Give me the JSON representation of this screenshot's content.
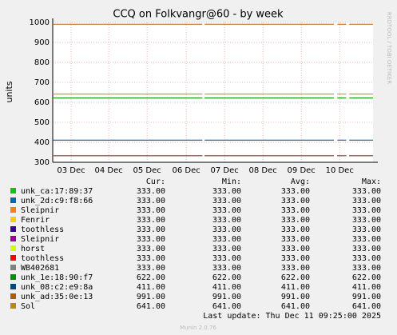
{
  "chart_data": {
    "type": "line",
    "title": "CCQ on Folkvangr@60 - by week",
    "y_label": "units",
    "side_label": "RRDTOOL / TOBI OETIKER",
    "last_update": "Last update: Thu Dec 11 09:25:00 2025",
    "footer": "Munin 2.0.76",
    "legend_headers": [
      "Cur:",
      "Min:",
      "Avg:",
      "Max:"
    ],
    "grid": true,
    "xlim": [
      0,
      8.35
    ],
    "xticks": [
      {
        "value": 0.48,
        "label": "03 Dec"
      },
      {
        "value": 1.46,
        "label": "04 Dec"
      },
      {
        "value": 2.46,
        "label": "05 Dec"
      },
      {
        "value": 3.48,
        "label": "06 Dec"
      },
      {
        "value": 4.48,
        "label": "07 Dec"
      },
      {
        "value": 5.48,
        "label": "08 Dec"
      },
      {
        "value": 6.48,
        "label": "09 Dec"
      },
      {
        "value": 7.48,
        "label": "10 Dec"
      }
    ],
    "ylim": [
      300,
      1000
    ],
    "yticks": [
      300,
      400,
      500,
      600,
      700,
      800,
      900,
      1000
    ],
    "x": [
      0,
      3.9,
      3.93,
      3.96,
      7.33,
      7.37,
      7.42,
      7.65,
      7.69,
      7.73,
      8.35
    ],
    "series": [
      {
        "name": "unk_ca:17:89:37",
        "color": "#00cc00",
        "values": [
          333,
          333,
          null,
          333,
          333,
          null,
          333,
          333,
          null,
          333,
          333
        ],
        "cur": "333.00",
        "min": "333.00",
        "avg": "333.00",
        "max": "333.00"
      },
      {
        "name": "unk_2d:c9:f8:66",
        "color": "#0066b3",
        "values": [
          333,
          333,
          null,
          333,
          333,
          null,
          333,
          333,
          null,
          333,
          333
        ],
        "cur": "333.00",
        "min": "333.00",
        "avg": "333.00",
        "max": "333.00"
      },
      {
        "name": "Sleipnir",
        "color": "#ff8000",
        "values": [
          333,
          333,
          null,
          333,
          333,
          null,
          333,
          333,
          null,
          333,
          333
        ],
        "cur": "333.00",
        "min": "333.00",
        "avg": "333.00",
        "max": "333.00"
      },
      {
        "name": "Fenrir",
        "color": "#ffcc00",
        "values": [
          333,
          333,
          null,
          333,
          333,
          null,
          333,
          333,
          null,
          333,
          333
        ],
        "cur": "333.00",
        "min": "333.00",
        "avg": "333.00",
        "max": "333.00"
      },
      {
        "name": "toothless",
        "color": "#330099",
        "values": [
          333,
          333,
          null,
          333,
          333,
          null,
          333,
          333,
          null,
          333,
          333
        ],
        "cur": "333.00",
        "min": "333.00",
        "avg": "333.00",
        "max": "333.00"
      },
      {
        "name": "Sleipnir",
        "color": "#990099",
        "values": [
          333,
          333,
          null,
          333,
          333,
          null,
          333,
          333,
          null,
          333,
          333
        ],
        "cur": "333.00",
        "min": "333.00",
        "avg": "333.00",
        "max": "333.00"
      },
      {
        "name": "horst",
        "color": "#ccff00",
        "values": [
          333,
          333,
          null,
          333,
          333,
          null,
          333,
          333,
          null,
          333,
          333
        ],
        "cur": "333.00",
        "min": "333.00",
        "avg": "333.00",
        "max": "333.00"
      },
      {
        "name": "toothless",
        "color": "#ff0000",
        "values": [
          333,
          333,
          null,
          333,
          333,
          null,
          333,
          333,
          null,
          333,
          333
        ],
        "cur": "333.00",
        "min": "333.00",
        "avg": "333.00",
        "max": "333.00"
      },
      {
        "name": "WB402681",
        "color": "#808080",
        "values": [
          333,
          333,
          null,
          333,
          333,
          null,
          333,
          333,
          null,
          333,
          333
        ],
        "cur": "333.00",
        "min": "333.00",
        "avg": "333.00",
        "max": "333.00"
      },
      {
        "name": "unk_1e:18:90:f7",
        "color": "#008f00",
        "values": [
          622,
          622,
          null,
          622,
          622,
          null,
          622,
          622,
          null,
          622,
          622
        ],
        "cur": "622.00",
        "min": "622.00",
        "avg": "622.00",
        "max": "622.00"
      },
      {
        "name": "unk_08:c2:e9:8a",
        "color": "#00487d",
        "values": [
          411,
          411,
          null,
          411,
          411,
          null,
          411,
          411,
          null,
          411,
          411
        ],
        "cur": "411.00",
        "min": "411.00",
        "avg": "411.00",
        "max": "411.00"
      },
      {
        "name": "unk_ad:35:0e:13",
        "color": "#b35a00",
        "values": [
          991,
          991,
          null,
          991,
          991,
          null,
          991,
          991,
          null,
          991,
          991
        ],
        "cur": "991.00",
        "min": "991.00",
        "avg": "991.00",
        "max": "991.00"
      },
      {
        "name": "Sol",
        "color": "#b38f00",
        "values": [
          641,
          641,
          null,
          641,
          641,
          null,
          641,
          641,
          null,
          641,
          641
        ],
        "cur": "641.00",
        "min": "641.00",
        "avg": "641.00",
        "max": "641.00"
      }
    ]
  }
}
